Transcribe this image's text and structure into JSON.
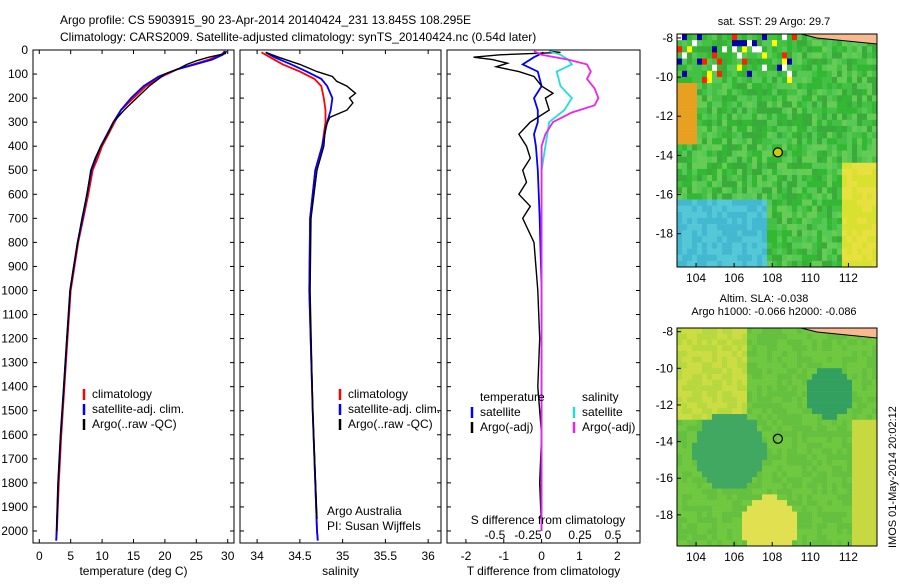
{
  "header": {
    "line1": "Argo profile: CS 5903915_90 23-Apr-2014 20140424_231 13.845S 108.295E",
    "line2": "Climatology: CARS2009. Satellite-adjusted climatology: synTS_20140424.nc (0.54d later)"
  },
  "colors": {
    "clim": "#ff0000",
    "sat": "#0000ff",
    "argo": "#000000",
    "sat_s": "#22dddd",
    "argo_s": "#ee22ee"
  },
  "depth_axis": {
    "ticks": [
      "0",
      "100",
      "200",
      "300",
      "400",
      "500",
      "600",
      "700",
      "800",
      "900",
      "1000",
      "1100",
      "1200",
      "1300",
      "1400",
      "1500",
      "1600",
      "1700",
      "1800",
      "1900",
      "2000"
    ],
    "min": 0,
    "max": 2050
  },
  "chart_data": [
    {
      "type": "line",
      "name": "temperature",
      "xlabel": "temperature (deg C)",
      "xlim": [
        -1,
        31
      ],
      "xticks": [
        "0",
        "5",
        "10",
        "15",
        "20",
        "25",
        "30"
      ],
      "legend": [
        "climatology",
        "satellite-adj. clim.",
        "Argo(..raw -QC)"
      ],
      "series": [
        {
          "name": "climatology",
          "color": "clim",
          "points": [
            [
              29.5,
              5
            ],
            [
              29,
              20
            ],
            [
              27,
              40
            ],
            [
              24.5,
              60
            ],
            [
              22,
              80
            ],
            [
              19.5,
              110
            ],
            [
              17,
              150
            ],
            [
              15,
              200
            ],
            [
              13,
              250
            ],
            [
              12,
              300
            ],
            [
              11,
              350
            ],
            [
              10,
              400
            ],
            [
              9.3,
              450
            ],
            [
              8.5,
              500
            ],
            [
              7.8,
              600
            ],
            [
              7,
              700
            ],
            [
              6.2,
              800
            ],
            [
              5.6,
              900
            ],
            [
              5,
              1000
            ],
            [
              4.5,
              1200
            ],
            [
              4,
              1400
            ],
            [
              3.5,
              1600
            ],
            [
              3.1,
              1800
            ],
            [
              2.8,
              2000
            ],
            [
              2.7,
              2040
            ]
          ]
        },
        {
          "name": "satellite-adj. clim.",
          "color": "sat",
          "points": [
            [
              29.6,
              5
            ],
            [
              29.2,
              20
            ],
            [
              27.5,
              40
            ],
            [
              24.8,
              60
            ],
            [
              22,
              80
            ],
            [
              19,
              110
            ],
            [
              16.6,
              150
            ],
            [
              14.6,
              200
            ],
            [
              13,
              250
            ],
            [
              11.8,
              300
            ],
            [
              10.8,
              350
            ],
            [
              9.8,
              400
            ],
            [
              9,
              450
            ],
            [
              8.3,
              500
            ],
            [
              7.6,
              600
            ],
            [
              6.9,
              700
            ],
            [
              6.1,
              800
            ],
            [
              5.5,
              900
            ],
            [
              4.9,
              1000
            ],
            [
              4.4,
              1200
            ],
            [
              3.9,
              1400
            ],
            [
              3.4,
              1600
            ],
            [
              3,
              1800
            ],
            [
              2.75,
              2000
            ],
            [
              2.7,
              2040
            ]
          ]
        },
        {
          "name": "Argo(..raw -QC)",
          "color": "argo",
          "points": [
            [
              29.8,
              5
            ],
            [
              29.6,
              15
            ],
            [
              27,
              30
            ],
            [
              25,
              45
            ],
            [
              23.5,
              60
            ],
            [
              22,
              80
            ],
            [
              20,
              100
            ],
            [
              19,
              120
            ],
            [
              17.5,
              150
            ],
            [
              15.5,
              200
            ],
            [
              13.5,
              250
            ],
            [
              11.8,
              300
            ],
            [
              10.9,
              350
            ],
            [
              9.8,
              400
            ],
            [
              8.9,
              450
            ],
            [
              8.2,
              500
            ],
            [
              7.6,
              600
            ],
            [
              6.8,
              700
            ],
            [
              6.1,
              800
            ],
            [
              5.5,
              900
            ],
            [
              4.9,
              1000
            ],
            [
              4.4,
              1200
            ],
            [
              3.9,
              1400
            ],
            [
              3.4,
              1600
            ],
            [
              3,
              1800
            ],
            [
              2.75,
              2000
            ]
          ]
        }
      ]
    },
    {
      "type": "line",
      "name": "salinity",
      "xlabel": "salinity",
      "xlim": [
        33.8,
        36.15
      ],
      "xticks": [
        "34",
        "34.5",
        "35",
        "35.5",
        "36"
      ],
      "legend": [
        "climatology",
        "satellite-adj. clim.",
        "Argo(..raw -QC)"
      ],
      "annotation": [
        "Argo Australia",
        "PI: Susan Wijffels"
      ],
      "series": [
        {
          "name": "climatology",
          "color": "clim",
          "points": [
            [
              34.05,
              10
            ],
            [
              34.15,
              30
            ],
            [
              34.3,
              60
            ],
            [
              34.5,
              90
            ],
            [
              34.67,
              120
            ],
            [
              34.75,
              150
            ],
            [
              34.78,
              200
            ],
            [
              34.8,
              250
            ],
            [
              34.8,
              300
            ],
            [
              34.76,
              400
            ],
            [
              34.68,
              500
            ],
            [
              34.62,
              700
            ],
            [
              34.61,
              1000
            ],
            [
              34.65,
              1500
            ],
            [
              34.7,
              2000
            ],
            [
              34.71,
              2040
            ]
          ]
        },
        {
          "name": "satellite-adj. clim.",
          "color": "sat",
          "points": [
            [
              34.1,
              10
            ],
            [
              34.2,
              30
            ],
            [
              34.4,
              60
            ],
            [
              34.58,
              90
            ],
            [
              34.75,
              120
            ],
            [
              34.82,
              150
            ],
            [
              34.88,
              200
            ],
            [
              34.86,
              250
            ],
            [
              34.82,
              300
            ],
            [
              34.76,
              400
            ],
            [
              34.68,
              500
            ],
            [
              34.62,
              700
            ],
            [
              34.61,
              1000
            ],
            [
              34.65,
              1500
            ],
            [
              34.7,
              2000
            ],
            [
              34.71,
              2040
            ]
          ]
        },
        {
          "name": "Argo(..raw -QC)",
          "color": "argo",
          "points": [
            [
              34.1,
              10
            ],
            [
              34.25,
              30
            ],
            [
              34.5,
              60
            ],
            [
              34.7,
              90
            ],
            [
              34.88,
              110
            ],
            [
              34.93,
              130
            ],
            [
              35.05,
              150
            ],
            [
              35.15,
              180
            ],
            [
              35.08,
              200
            ],
            [
              35.12,
              220
            ],
            [
              35.05,
              250
            ],
            [
              34.85,
              280
            ],
            [
              34.8,
              320
            ],
            [
              34.78,
              400
            ],
            [
              34.7,
              500
            ],
            [
              34.63,
              700
            ],
            [
              34.62,
              1000
            ],
            [
              34.65,
              1500
            ],
            [
              34.7,
              1950
            ]
          ]
        }
      ]
    },
    {
      "type": "line",
      "name": "difference",
      "xlabel": "T difference from climatology",
      "xlabel_top": "S difference from climatology",
      "xlim": [
        -2.5,
        2.6
      ],
      "xticks": [
        "-2",
        "-1",
        "0",
        "1",
        "2"
      ],
      "top_ticks": [
        "-0.5",
        "-0.25",
        "0",
        "0.25",
        "0.5"
      ],
      "legend_left_title": "temperature",
      "legend_right_title": "salinity",
      "legend_left": [
        "satellite",
        "Argo(-adj)"
      ],
      "legend_right": [
        "satellite",
        "Argo(-adj)"
      ],
      "series": [
        {
          "name": "T satellite",
          "color": "sat",
          "points": [
            [
              0.05,
              10
            ],
            [
              -0.2,
              30
            ],
            [
              -0.5,
              60
            ],
            [
              -0.1,
              90
            ],
            [
              0,
              150
            ],
            [
              -0.2,
              200
            ],
            [
              -0.1,
              250
            ],
            [
              -0.1,
              300
            ],
            [
              -0.2,
              350
            ],
            [
              -0.15,
              400
            ],
            [
              -0.1,
              500
            ],
            [
              -0.05,
              700
            ],
            [
              0,
              1000
            ],
            [
              0,
              2000
            ]
          ]
        },
        {
          "name": "T Argo(-adj)",
          "color": "argo",
          "points": [
            [
              0.2,
              5
            ],
            [
              0.5,
              10
            ],
            [
              -1.1,
              20
            ],
            [
              -1.8,
              30
            ],
            [
              -1.3,
              40
            ],
            [
              -0.9,
              55
            ],
            [
              -1.2,
              70
            ],
            [
              -0.6,
              90
            ],
            [
              -0.2,
              110
            ],
            [
              0,
              150
            ],
            [
              0.3,
              180
            ],
            [
              0.1,
              200
            ],
            [
              0.2,
              250
            ],
            [
              -0.3,
              300
            ],
            [
              -0.6,
              350
            ],
            [
              -0.4,
              400
            ],
            [
              -0.3,
              450
            ],
            [
              -0.5,
              500
            ],
            [
              -0.4,
              550
            ],
            [
              -0.6,
              600
            ],
            [
              -0.3,
              650
            ],
            [
              -0.5,
              700
            ],
            [
              -0.2,
              800
            ],
            [
              -0.15,
              900
            ],
            [
              -0.1,
              1000
            ],
            [
              -0.05,
              1200
            ],
            [
              -0.1,
              1400
            ],
            [
              0,
              1600
            ],
            [
              -0.05,
              1800
            ],
            [
              0,
              2000
            ]
          ]
        },
        {
          "name": "S satellite",
          "color": "sat_s",
          "points": [
            [
              0.2,
              5
            ],
            [
              0.5,
              20
            ],
            [
              0.7,
              40
            ],
            [
              0.8,
              60
            ],
            [
              0.4,
              90
            ],
            [
              0.5,
              150
            ],
            [
              0.8,
              200
            ],
            [
              0.6,
              250
            ],
            [
              0.2,
              300
            ],
            [
              0.1,
              400
            ],
            [
              0,
              500
            ],
            [
              0,
              1000
            ],
            [
              0,
              2000
            ]
          ]
        },
        {
          "name": "S Argo(-adj)",
          "color": "argo_s",
          "points": [
            [
              -0.2,
              5
            ],
            [
              0,
              20
            ],
            [
              0.7,
              40
            ],
            [
              1.2,
              60
            ],
            [
              1.3,
              90
            ],
            [
              1.2,
              120
            ],
            [
              1.4,
              160
            ],
            [
              1.5,
              200
            ],
            [
              1.4,
              230
            ],
            [
              0.8,
              260
            ],
            [
              0.3,
              300
            ],
            [
              0.1,
              350
            ],
            [
              0,
              400
            ],
            [
              0,
              1000
            ],
            [
              0,
              2000
            ]
          ]
        }
      ]
    }
  ],
  "map_sst": {
    "title": "sat. SST: 29 Argo: 29.7",
    "xticks": [
      "104",
      "106",
      "108",
      "110",
      "112"
    ],
    "yticks": [
      "-8",
      "-10",
      "-12",
      "-14",
      "-16",
      "-18"
    ]
  },
  "map_sla": {
    "title1": "Altim. SLA: -0.038",
    "title2": "Argo h1000: -0.066 h2000: -0.086",
    "xticks": [
      "104",
      "106",
      "108",
      "110",
      "112"
    ],
    "yticks": [
      "-8",
      "-10",
      "-12",
      "-14",
      "-16",
      "-18"
    ]
  },
  "credit": "IMOS 01-May-2014 20:02:12"
}
